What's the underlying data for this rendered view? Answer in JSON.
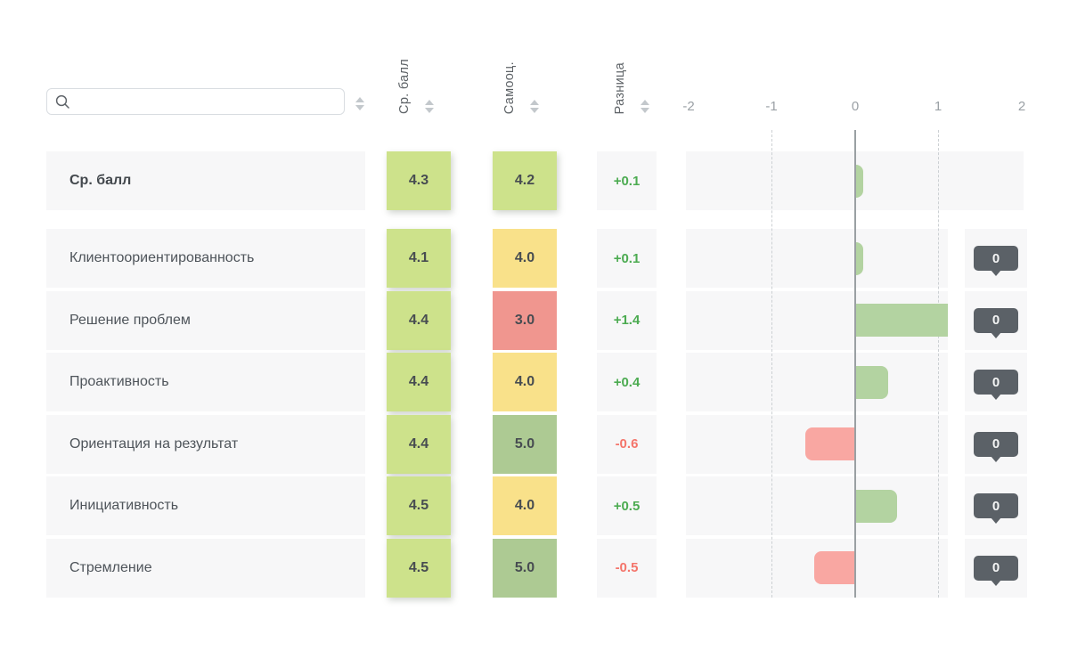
{
  "search": {
    "placeholder": ""
  },
  "columns": [
    {
      "label": "Ср. балл"
    },
    {
      "label": "Самооц."
    },
    {
      "label": "Разница"
    }
  ],
  "axis": {
    "ticks": [
      "-2",
      "-1",
      "0",
      "1",
      "2"
    ]
  },
  "rows": [
    {
      "label": "Ср. балл",
      "avg": "4.3",
      "avg_color": "light-green",
      "self": "4.2",
      "self_color": "light-green",
      "diff": "+0.1",
      "diff_value": 0.1,
      "comments": null,
      "main": true
    },
    {
      "label": "Клиентоориентированность",
      "avg": "4.1",
      "avg_color": "light-green",
      "self": "4.0",
      "self_color": "yellow",
      "diff": "+0.1",
      "diff_value": 0.1,
      "comments": "0",
      "main": false
    },
    {
      "label": "Решение проблем",
      "avg": "4.4",
      "avg_color": "light-green",
      "self": "3.0",
      "self_color": "red",
      "diff": "+1.4",
      "diff_value": 1.4,
      "comments": "0",
      "main": false
    },
    {
      "label": "Проактивность",
      "avg": "4.4",
      "avg_color": "light-green",
      "self": "4.0",
      "self_color": "yellow",
      "diff": "+0.4",
      "diff_value": 0.4,
      "comments": "0",
      "main": false
    },
    {
      "label": "Ориентация на результат",
      "avg": "4.4",
      "avg_color": "light-green",
      "self": "5.0",
      "self_color": "dark-green",
      "diff": "-0.6",
      "diff_value": -0.6,
      "comments": "0",
      "main": false
    },
    {
      "label": "Инициативность",
      "avg": "4.5",
      "avg_color": "light-green",
      "self": "4.0",
      "self_color": "yellow",
      "diff": "+0.5",
      "diff_value": 0.5,
      "comments": "0",
      "main": false
    },
    {
      "label": "Стремление",
      "avg": "4.5",
      "avg_color": "light-green",
      "self": "5.0",
      "self_color": "dark-green",
      "diff": "-0.5",
      "diff_value": -0.5,
      "comments": "0",
      "main": false
    }
  ],
  "colors": {
    "cell": {
      "light-green": "#cde28b",
      "yellow": "#f9e18a",
      "red": "#f0968f",
      "dark-green": "#adca93"
    },
    "bar_positive": "#b3d3a1",
    "bar_negative": "#f9a7a2",
    "diff_positive": "#4cab51",
    "diff_negative": "#f4756b",
    "badge": "#5b6167",
    "row_bg": "#f7f7f8",
    "zero_line": "#9aa0a3",
    "grid_dashed": "#ccd0d3"
  }
}
